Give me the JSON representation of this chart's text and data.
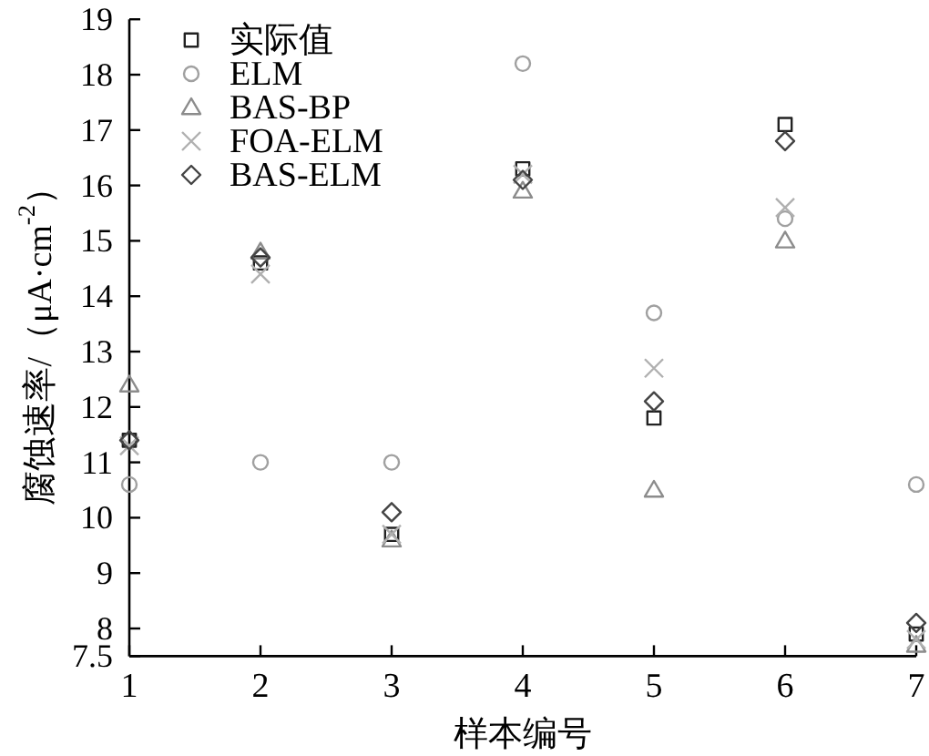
{
  "chart_data": {
    "type": "scatter",
    "xlabel": "样本编号",
    "ylabel": "腐蚀速率/（μA·cm$^{-2}$）",
    "x": [
      1,
      2,
      3,
      4,
      5,
      6,
      7
    ],
    "xlim": [
      1,
      7
    ],
    "xticks": [
      1,
      2,
      3,
      4,
      5,
      6,
      7
    ],
    "ylim": [
      7.5,
      19
    ],
    "yticks": [
      7.5,
      8,
      9,
      10,
      11,
      12,
      13,
      14,
      15,
      16,
      17,
      18,
      19
    ],
    "legend": "top left",
    "series": [
      {
        "name": "实际值",
        "color": "#222222",
        "marker": "square",
        "values": [
          11.4,
          14.6,
          9.7,
          16.3,
          11.8,
          17.1,
          7.9
        ]
      },
      {
        "name": "ELM",
        "color": "#a0a0a0",
        "marker": "circle",
        "values": [
          10.6,
          11.0,
          11.0,
          18.2,
          13.7,
          15.4,
          10.6
        ]
      },
      {
        "name": "BAS-BP",
        "color": "#8c8c8c",
        "marker": "triangle",
        "values": [
          12.4,
          14.8,
          9.6,
          15.9,
          10.5,
          15.0,
          7.7
        ]
      },
      {
        "name": "FOA-ELM",
        "color": "#b0b0b0",
        "marker": "cross",
        "values": [
          11.3,
          14.4,
          9.7,
          16.2,
          12.7,
          15.6,
          7.8
        ]
      },
      {
        "name": "BAS-ELM",
        "color": "#444444",
        "marker": "diamond",
        "values": [
          11.4,
          14.7,
          10.1,
          16.1,
          12.1,
          16.8,
          8.1
        ]
      }
    ]
  }
}
